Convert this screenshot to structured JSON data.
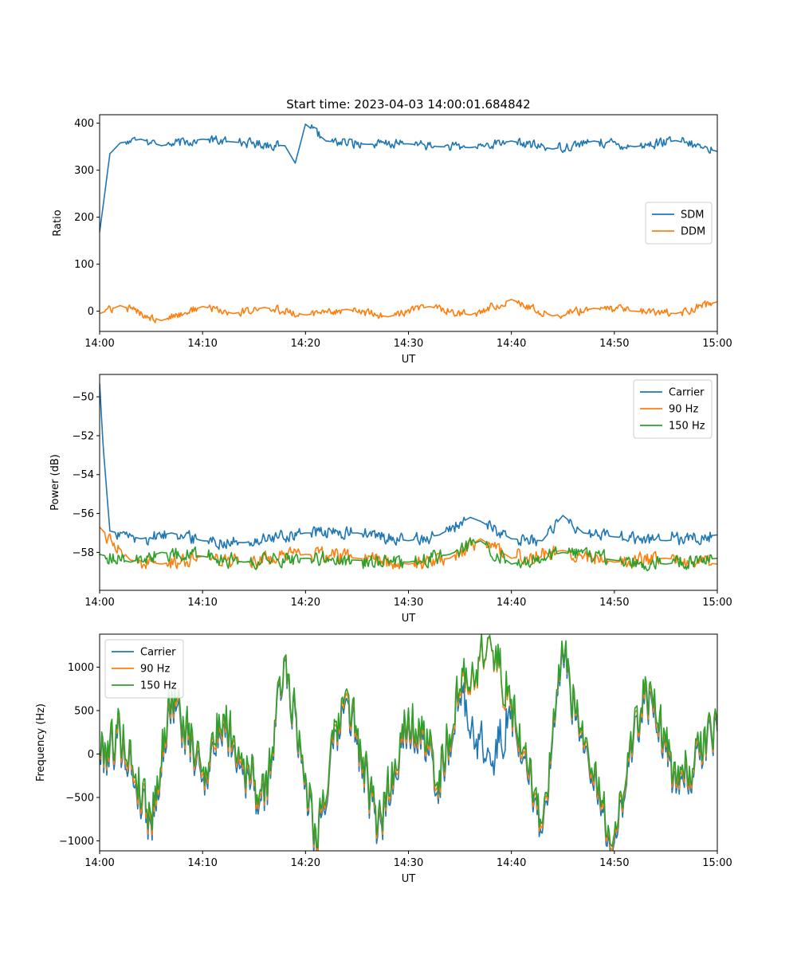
{
  "figure_title": "Start time: 2023-04-03 14:00:01.684842",
  "colors": {
    "blue": "#1f77b4",
    "orange": "#ff7f0e",
    "green": "#2ca02c"
  },
  "chart_data": [
    {
      "type": "line",
      "title": "Start time: 2023-04-03 14:00:01.684842",
      "xlabel": "UT",
      "ylabel": "Ratio",
      "xlim": [
        "14:00",
        "15:00"
      ],
      "ylim": [
        -43,
        418
      ],
      "xticks": [
        "14:00",
        "14:10",
        "14:20",
        "14:30",
        "14:40",
        "14:50",
        "15:00"
      ],
      "yticks": [
        0,
        100,
        200,
        300,
        400
      ],
      "ytick_labels": [
        "0",
        "100",
        "200",
        "300",
        "400"
      ],
      "legend": "center-right",
      "grid": false,
      "series": [
        {
          "name": "SDM",
          "color": "#1f77b4",
          "x": [
            "14:00",
            "14:01",
            "14:02",
            "14:04",
            "14:06",
            "14:10",
            "14:13",
            "14:18",
            "14:19",
            "14:20",
            "14:22",
            "14:26",
            "14:30",
            "14:33",
            "14:36",
            "14:40",
            "14:44",
            "14:48",
            "14:52",
            "14:56",
            "15:00"
          ],
          "values": [
            168,
            335,
            358,
            366,
            352,
            366,
            360,
            352,
            315,
            398,
            362,
            355,
            356,
            350,
            348,
            362,
            345,
            362,
            350,
            363,
            340
          ]
        },
        {
          "name": "DDM",
          "color": "#ff7f0e",
          "x": [
            "14:00",
            "14:02",
            "14:06",
            "14:10",
            "14:13",
            "14:16",
            "14:20",
            "14:24",
            "14:28",
            "14:32",
            "14:36",
            "14:40",
            "14:44",
            "14:48",
            "14:52",
            "14:56",
            "15:00"
          ],
          "values": [
            -5,
            12,
            -20,
            10,
            -5,
            8,
            -8,
            4,
            -12,
            10,
            -8,
            25,
            -10,
            6,
            0,
            -5,
            20
          ]
        }
      ]
    },
    {
      "type": "line",
      "title": "",
      "xlabel": "UT",
      "ylabel": "Power (dB)",
      "xlim": [
        "14:00",
        "15:00"
      ],
      "ylim": [
        -59.95,
        -48.85
      ],
      "xticks": [
        "14:00",
        "14:10",
        "14:20",
        "14:30",
        "14:40",
        "14:50",
        "15:00"
      ],
      "yticks": [
        -58,
        -56,
        -54,
        -52,
        -50
      ],
      "ytick_labels": [
        "−58",
        "−56",
        "−54",
        "−52",
        "−50"
      ],
      "legend": "top-right",
      "grid": false,
      "series": [
        {
          "name": "Carrier",
          "color": "#1f77b4",
          "x": [
            "14:00",
            "14:00:20",
            "14:01",
            "14:04",
            "14:07",
            "14:10",
            "14:14",
            "14:20",
            "14:25",
            "14:30",
            "14:33",
            "14:36",
            "14:37",
            "14:40",
            "14:43",
            "14:45",
            "14:47",
            "14:50",
            "14:55",
            "15:00"
          ],
          "values": [
            -49.3,
            -52.5,
            -56.9,
            -57.3,
            -57.0,
            -57.4,
            -57.5,
            -57.0,
            -57.0,
            -57.4,
            -57.1,
            -56.2,
            -56.4,
            -57.3,
            -57.4,
            -56.1,
            -57.0,
            -57.2,
            -57.4,
            -57.1
          ]
        },
        {
          "name": "90 Hz",
          "color": "#ff7f0e",
          "x": [
            "14:00",
            "14:03",
            "14:06",
            "14:10",
            "14:14",
            "14:20",
            "14:25",
            "14:30",
            "14:34",
            "14:37",
            "14:40",
            "14:45",
            "14:50",
            "14:55",
            "15:00"
          ],
          "values": [
            -56.7,
            -58.4,
            -58.6,
            -58.2,
            -58.5,
            -58.1,
            -58.3,
            -58.6,
            -58.3,
            -57.3,
            -58.3,
            -57.9,
            -58.5,
            -58.3,
            -58.6
          ]
        },
        {
          "name": "150 Hz",
          "color": "#2ca02c",
          "x": [
            "14:00",
            "14:03",
            "14:06",
            "14:10",
            "14:14",
            "14:20",
            "14:25",
            "14:30",
            "14:34",
            "14:37",
            "14:40",
            "14:45",
            "14:50",
            "14:55",
            "15:00"
          ],
          "values": [
            -58.1,
            -58.5,
            -58.0,
            -58.2,
            -58.5,
            -58.3,
            -58.4,
            -58.5,
            -58.1,
            -57.4,
            -58.6,
            -58.0,
            -58.4,
            -58.6,
            -58.3
          ]
        }
      ]
    },
    {
      "type": "line",
      "title": "",
      "xlabel": "UT",
      "ylabel": "Frequency (Hz)",
      "xlim": [
        "14:00",
        "15:00"
      ],
      "ylim": [
        -1115,
        1380
      ],
      "xticks": [
        "14:00",
        "14:10",
        "14:20",
        "14:30",
        "14:40",
        "14:50",
        "15:00"
      ],
      "yticks": [
        -1000,
        -500,
        0,
        500,
        1000
      ],
      "ytick_labels": [
        "−1000",
        "−500",
        "0",
        "500",
        "1000"
      ],
      "legend": "top-left",
      "grid": false,
      "series": [
        {
          "name": "Carrier",
          "color": "#1f77b4",
          "x": [
            "14:00",
            "14:02",
            "14:05",
            "14:07",
            "14:10",
            "14:12",
            "14:16",
            "14:18",
            "14:21",
            "14:24",
            "14:27",
            "14:30",
            "14:33",
            "14:35",
            "14:38",
            "14:40",
            "14:43",
            "14:45",
            "14:48",
            "14:50",
            "14:53",
            "14:56",
            "15:00"
          ],
          "values": [
            -60,
            180,
            -820,
            620,
            -300,
            350,
            -650,
            1080,
            -980,
            640,
            -950,
            420,
            -300,
            640,
            -120,
            520,
            -910,
            1100,
            -420,
            -1020,
            780,
            -450,
            260
          ]
        },
        {
          "name": "90 Hz",
          "color": "#ff7f0e",
          "x": [
            "14:00",
            "14:02",
            "14:05",
            "14:07",
            "14:10",
            "14:12",
            "14:16",
            "14:18",
            "14:21",
            "14:24",
            "14:27",
            "14:30",
            "14:33",
            "14:35",
            "14:38",
            "14:40",
            "14:43",
            "14:45",
            "14:48",
            "14:50",
            "14:53",
            "14:56",
            "15:00"
          ],
          "values": [
            0,
            240,
            -760,
            680,
            -240,
            410,
            -590,
            1110,
            -920,
            700,
            -890,
            480,
            -240,
            700,
            1270,
            580,
            -850,
            1150,
            -360,
            -960,
            840,
            -390,
            300
          ]
        },
        {
          "name": "150 Hz",
          "color": "#2ca02c",
          "x": [
            "14:00",
            "14:02",
            "14:05",
            "14:07",
            "14:10",
            "14:12",
            "14:16",
            "14:18",
            "14:21",
            "14:24",
            "14:27",
            "14:30",
            "14:33",
            "14:35",
            "14:38",
            "14:40",
            "14:43",
            "14:45",
            "14:48",
            "14:50",
            "14:53",
            "14:56",
            "15:00"
          ],
          "values": [
            40,
            290,
            -700,
            730,
            -190,
            460,
            -540,
            1120,
            -880,
            750,
            -850,
            530,
            -190,
            750,
            1280,
            630,
            -800,
            1160,
            -310,
            -920,
            890,
            -340,
            330
          ]
        }
      ]
    }
  ]
}
